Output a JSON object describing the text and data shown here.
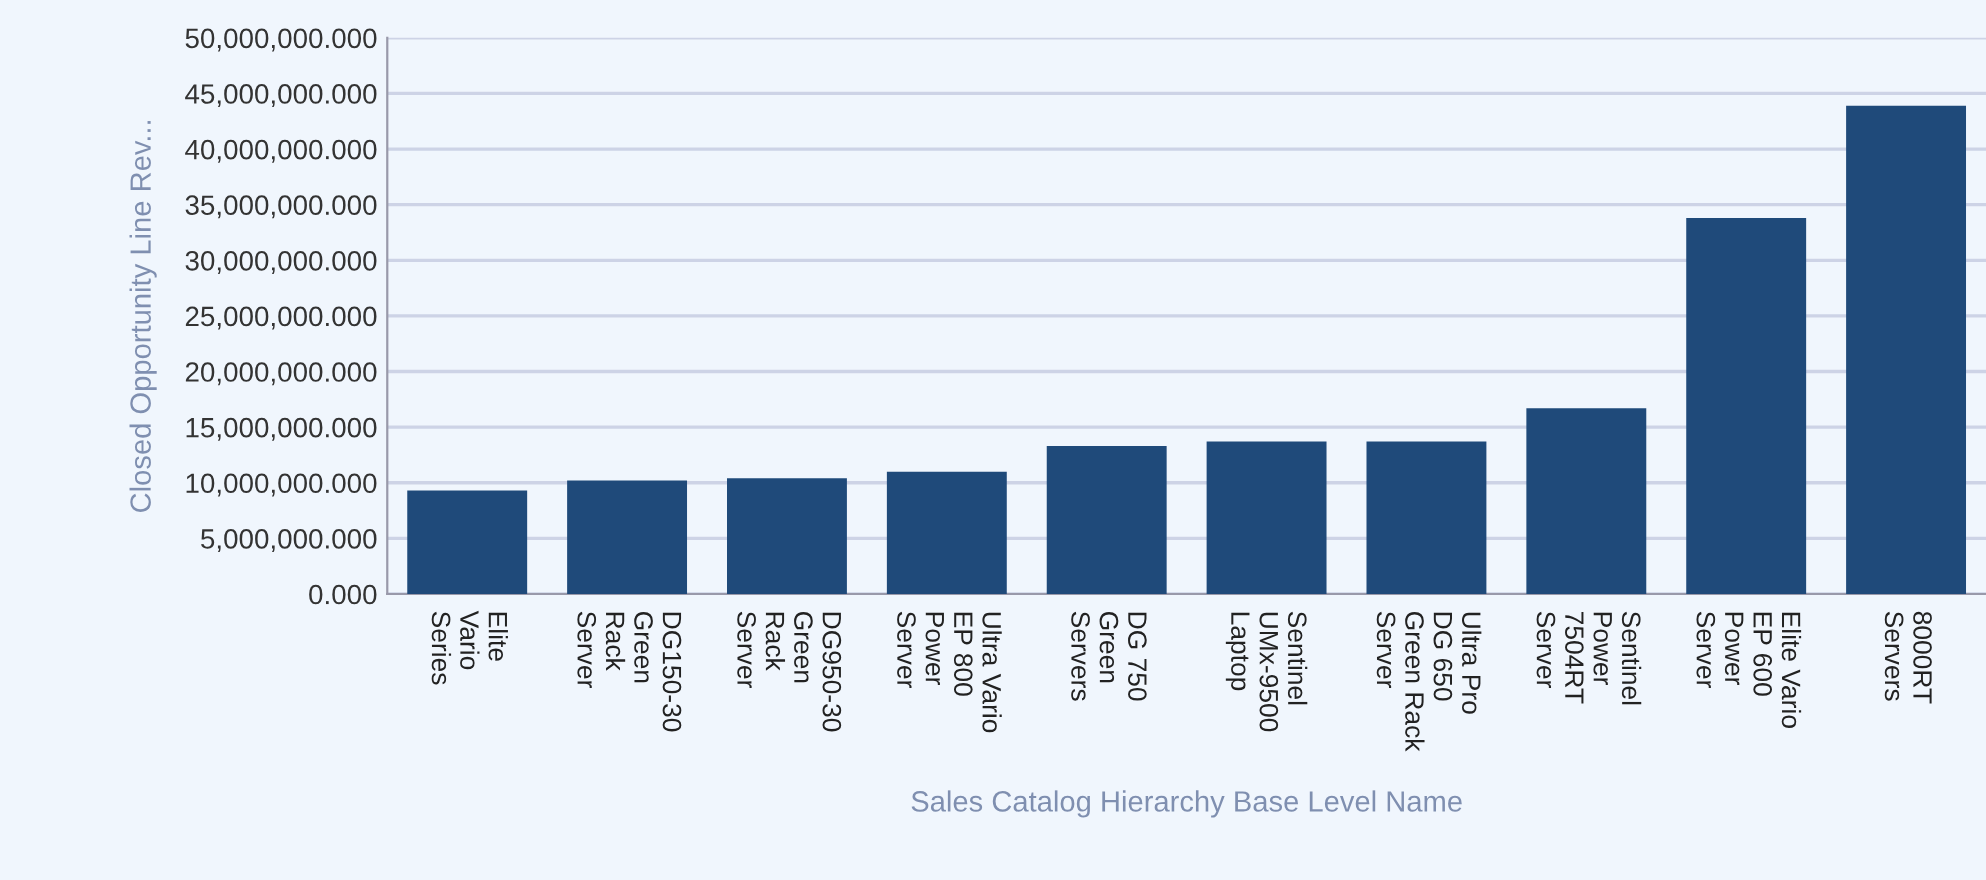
{
  "chart_data": {
    "type": "bar",
    "xlabel": "Sales Catalog Hierarchy Base Level Name",
    "ylabel": "Closed Opportunity Line Rev...",
    "categories": [
      "Elite\nVario\nSeries",
      "DG150-30\nGreen\nRack\nServer",
      "DG950-30\nGreen\nRack\nServer",
      "Ultra Vario\nEP 800\nPower\nServer",
      "DG 750\nGreen\nServers",
      "Sentinel\nUMx-9500\nLaptop",
      "Ultra Pro\nDG 650\nGreen Rack\nServer",
      "Sentinel\nPower\n7504RT\nServer",
      "Elite Vario\nEP 600\nPower\nServer",
      "8000RT\nServers"
    ],
    "values": [
      9300000,
      10200000,
      10400000,
      11000000,
      13300000,
      13700000,
      13700000,
      16700000,
      33800000,
      43900000
    ],
    "color": "#1f4a7a",
    "ylim": [
      0,
      50000000
    ],
    "yticks": [
      {
        "value": 0,
        "label": "0.000"
      },
      {
        "value": 5000000,
        "label": "5,000,000.000"
      },
      {
        "value": 10000000,
        "label": "10,000,000.000"
      },
      {
        "value": 15000000,
        "label": "15,000,000.000"
      },
      {
        "value": 20000000,
        "label": "20,000,000.000"
      },
      {
        "value": 25000000,
        "label": "25,000,000.000"
      },
      {
        "value": 30000000,
        "label": "30,000,000.000"
      },
      {
        "value": 35000000,
        "label": "35,000,000.000"
      },
      {
        "value": 40000000,
        "label": "40,000,000.000"
      },
      {
        "value": 45000000,
        "label": "45,000,000.000"
      },
      {
        "value": 50000000,
        "label": "50,000,000.000"
      }
    ],
    "grid": "y"
  }
}
